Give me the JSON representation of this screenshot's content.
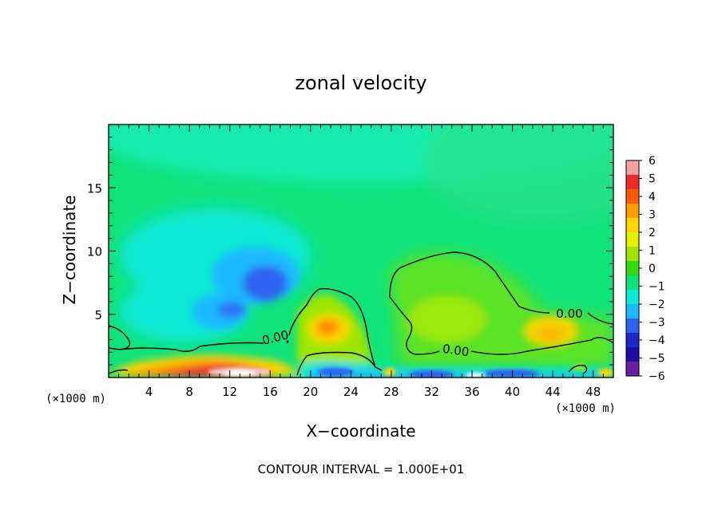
{
  "chart_data": {
    "type": "heatmap",
    "title": "zonal velocity",
    "xlabel": "X−coordinate",
    "ylabel": "Z−coordinate",
    "x_units": "(×1000 m)",
    "y_units": "(×1000 m)",
    "xlim": [
      0,
      50
    ],
    "ylim": [
      0,
      20
    ],
    "x_ticks": [
      "4",
      "8",
      "12",
      "16",
      "20",
      "24",
      "28",
      "32",
      "36",
      "40",
      "44",
      "48"
    ],
    "y_ticks": [
      "5",
      "10",
      "15"
    ],
    "footer": "CONTOUR INTERVAL = 1.000E+01",
    "contour_labels": [
      "0.00",
      "0.00",
      "0.00"
    ],
    "colorbar": {
      "ticks": [
        "6",
        "5",
        "4",
        "3",
        "2",
        "1",
        "0",
        "−1",
        "−2",
        "−3",
        "−4",
        "−5",
        "−6"
      ],
      "range": [
        -6,
        6
      ],
      "colors": [
        "#f4a0a0",
        "#ee2a2a",
        "#ff5a00",
        "#ff9e00",
        "#ffd400",
        "#e8f000",
        "#9ee600",
        "#2fdc10",
        "#10e27a",
        "#10e8d6",
        "#1ab8ff",
        "#2d62f0",
        "#1d28c8",
        "#1a0ea6",
        "#6a1aa0"
      ]
    },
    "features": [
      {
        "name": "upper negative cell",
        "x": 15,
        "z": 7.5,
        "value": -3.5
      },
      {
        "name": "mid negative cell",
        "x": 10,
        "z": 5,
        "value": -2.8
      },
      {
        "name": "low-level positive jet",
        "x": 12,
        "z": 0.6,
        "value": 4.5
      },
      {
        "name": "positive cell",
        "x": 21,
        "z": 3.8,
        "value": 3
      },
      {
        "name": "positive cell east",
        "x": 44,
        "z": 3.5,
        "value": 2.5
      },
      {
        "name": "surface negative band",
        "x": 36,
        "z": 0.5,
        "value": -4.2
      }
    ]
  }
}
